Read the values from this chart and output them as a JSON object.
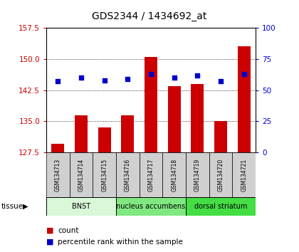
{
  "title": "GDS2344 / 1434692_at",
  "samples": [
    "GSM134713",
    "GSM134714",
    "GSM134715",
    "GSM134716",
    "GSM134717",
    "GSM134718",
    "GSM134719",
    "GSM134720",
    "GSM134721"
  ],
  "count_values": [
    129.5,
    136.5,
    133.5,
    136.5,
    150.5,
    143.5,
    144.0,
    135.0,
    153.0
  ],
  "percentile_values": [
    57,
    60,
    58,
    59,
    63,
    60,
    62,
    57,
    63
  ],
  "ylim_left": [
    127.5,
    157.5
  ],
  "ylim_right": [
    0,
    100
  ],
  "yticks_left": [
    127.5,
    135.0,
    142.5,
    150.0,
    157.5
  ],
  "yticks_right": [
    0,
    25,
    50,
    75,
    100
  ],
  "bar_color": "#cc0000",
  "dot_color": "#0000cc",
  "tissue_groups": [
    {
      "label": "BNST",
      "start": 0,
      "end": 3,
      "color": "#d8f8d8"
    },
    {
      "label": "nucleus accumbens",
      "start": 3,
      "end": 6,
      "color": "#80e880"
    },
    {
      "label": "dorsal striatum",
      "start": 6,
      "end": 9,
      "color": "#44dd44"
    }
  ],
  "tissue_label": "tissue",
  "legend_count_label": "count",
  "legend_percentile_label": "percentile rank within the sample",
  "background_color": "#ffffff",
  "tick_color_left": "#cc0000",
  "tick_color_right": "#0000cc",
  "sample_box_color": "#d0d0d0"
}
